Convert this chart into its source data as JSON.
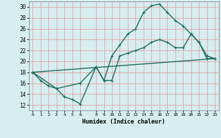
{
  "xlabel": "Humidex (Indice chaleur)",
  "xlim": [
    -0.5,
    23.5
  ],
  "ylim": [
    11,
    31
  ],
  "yticks": [
    12,
    14,
    16,
    18,
    20,
    22,
    24,
    26,
    28,
    30
  ],
  "xticks": [
    0,
    1,
    2,
    3,
    4,
    5,
    6,
    8,
    9,
    10,
    11,
    12,
    13,
    14,
    15,
    16,
    17,
    18,
    19,
    20,
    21,
    22,
    23
  ],
  "bg_color": "#d6eef0",
  "line_color": "#1a6b5a",
  "grid_color": "#e8a0a0",
  "line_width": 1.0,
  "marker_size": 2.5,
  "lines": [
    {
      "x": [
        0,
        1,
        2,
        3,
        4,
        5,
        6,
        8,
        9,
        10,
        11,
        12,
        13,
        14,
        15,
        16,
        17,
        18,
        19,
        20,
        21,
        22,
        23
      ],
      "y": [
        18.0,
        16.5,
        15.5,
        15.0,
        13.5,
        13.0,
        12.2,
        19.0,
        16.5,
        21.0,
        23.0,
        25.0,
        26.0,
        29.0,
        30.2,
        30.5,
        29.0,
        27.5,
        26.5,
        25.0,
        23.5,
        20.5,
        20.5
      ]
    },
    {
      "x": [
        0,
        3,
        6,
        8,
        9,
        10,
        11,
        12,
        13,
        14,
        15,
        16,
        17,
        18,
        19,
        20,
        21,
        22,
        23
      ],
      "y": [
        18.0,
        15.0,
        16.0,
        19.0,
        16.5,
        16.5,
        21.0,
        21.5,
        22.0,
        22.5,
        23.5,
        24.0,
        23.5,
        22.5,
        22.5,
        25.0,
        23.5,
        21.0,
        20.5
      ]
    },
    {
      "x": [
        0,
        23
      ],
      "y": [
        18.0,
        20.5
      ]
    }
  ]
}
